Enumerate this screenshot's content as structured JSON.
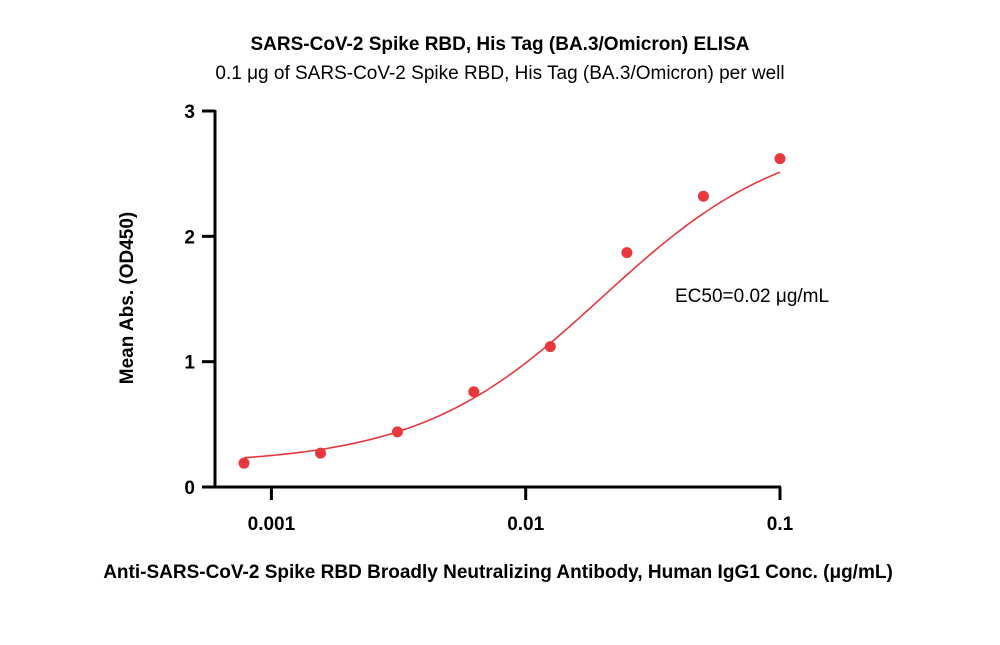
{
  "chart_data": {
    "type": "scatter",
    "title": "SARS-CoV-2 Spike RBD, His Tag (BA.3/Omicron) ELISA",
    "subtitle": "0.1 μg of SARS-CoV-2 Spike RBD, His Tag (BA.3/Omicron) per well",
    "xlabel": "Anti-SARS-CoV-2 Spike RBD Broadly Neutralizing Antibody, Human IgG1 Conc. (μg/mL)",
    "ylabel": "Mean Abs. (OD450)",
    "x_scale": "log",
    "xlim": [
      0.0006,
      0.1
    ],
    "ylim": [
      0,
      3
    ],
    "x_ticks": [
      0.001,
      0.01,
      0.1
    ],
    "x_tick_labels": [
      "0.001",
      "0.01",
      "0.1"
    ],
    "y_ticks": [
      0,
      1,
      2,
      3
    ],
    "y_tick_labels": [
      "0",
      "1",
      "2",
      "3"
    ],
    "grid": false,
    "legend": "none",
    "series": [
      {
        "color": "#e8383d",
        "points": [
          {
            "x": 0.00078,
            "y": 0.19
          },
          {
            "x": 0.00156,
            "y": 0.27
          },
          {
            "x": 0.00313,
            "y": 0.44
          },
          {
            "x": 0.00625,
            "y": 0.76
          },
          {
            "x": 0.0125,
            "y": 1.12
          },
          {
            "x": 0.025,
            "y": 1.87
          },
          {
            "x": 0.05,
            "y": 2.32
          },
          {
            "x": 0.1,
            "y": 2.62
          }
        ],
        "fit": {
          "model": "4PL",
          "bottom": 0.18,
          "top": 2.85,
          "ec50": 0.02,
          "hill": 1.2
        }
      }
    ],
    "annotation": "EC50=0.02 μg/mL"
  }
}
